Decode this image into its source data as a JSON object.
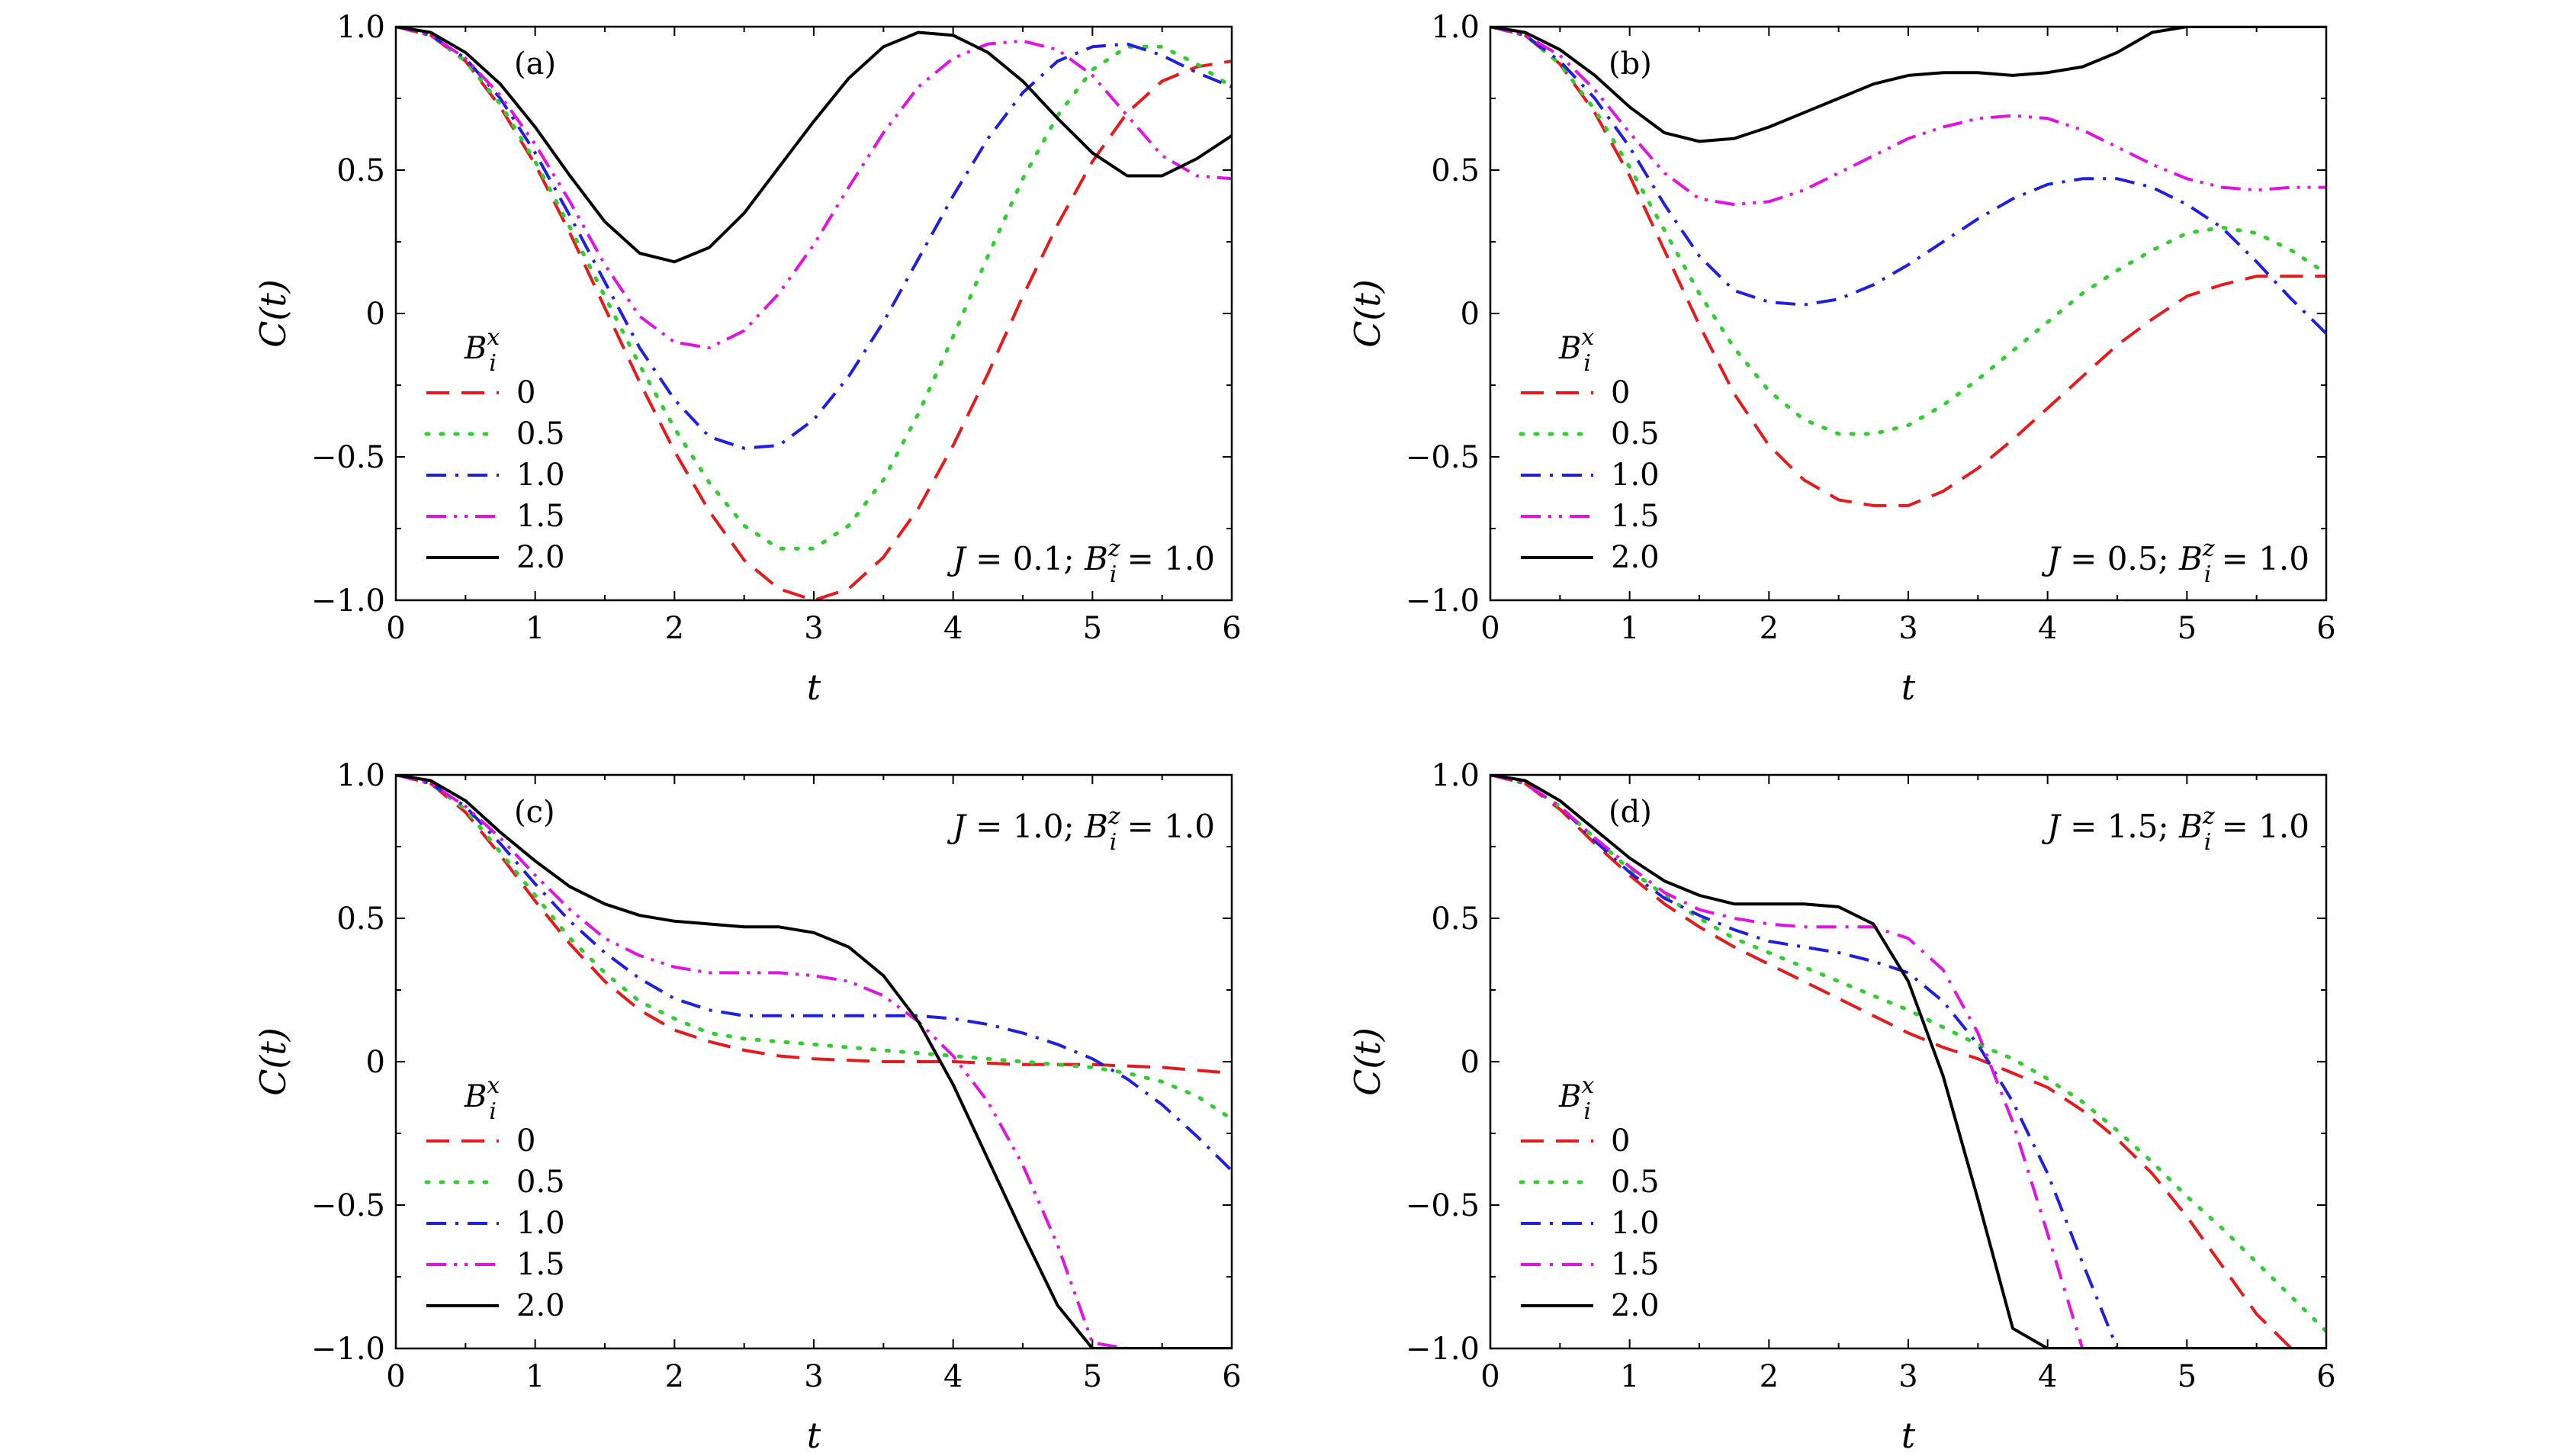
{
  "chart_data": [
    {
      "type": "line",
      "panel": "(a)",
      "annotation": {
        "J": "0.1",
        "Bz": "1.0"
      },
      "xlabel": "t",
      "ylabel": "C(t)",
      "xlim": [
        0,
        6
      ],
      "ylim": [
        -1.0,
        1.0
      ],
      "xticks": [
        "0",
        "1",
        "2",
        "3",
        "4",
        "5",
        "6"
      ],
      "yticks": [
        "−1.0",
        "−0.5",
        "0",
        "0.5",
        "1.0"
      ],
      "legend_title": "B",
      "legend_title_sup": "x",
      "legend_title_sub": "i",
      "legend_placement": "lower-left",
      "x": [
        0,
        0.25,
        0.5,
        0.75,
        1,
        1.25,
        1.5,
        1.75,
        2,
        2.25,
        2.5,
        2.75,
        3,
        3.25,
        3.5,
        3.75,
        4,
        4.25,
        4.5,
        4.75,
        5,
        5.25,
        5.5,
        5.75,
        6
      ],
      "series": [
        {
          "name": "0",
          "color": "#e41a1c",
          "dash": "dash",
          "values": [
            1,
            0.97,
            0.88,
            0.72,
            0.52,
            0.28,
            0.02,
            -0.24,
            -0.48,
            -0.69,
            -0.86,
            -0.96,
            -1.0,
            -0.96,
            -0.85,
            -0.68,
            -0.46,
            -0.21,
            0.06,
            0.31,
            0.53,
            0.7,
            0.81,
            0.86,
            0.88
          ]
        },
        {
          "name": "0.5",
          "color": "#33cc33",
          "dash": "dot",
          "values": [
            1,
            0.97,
            0.88,
            0.73,
            0.53,
            0.3,
            0.06,
            -0.18,
            -0.4,
            -0.59,
            -0.74,
            -0.82,
            -0.82,
            -0.74,
            -0.58,
            -0.35,
            -0.08,
            0.2,
            0.47,
            0.69,
            0.85,
            0.93,
            0.93,
            0.87,
            0.79
          ]
        },
        {
          "name": "1.0",
          "color": "#1f1fdd",
          "dash": "dashdot",
          "values": [
            1,
            0.97,
            0.89,
            0.75,
            0.56,
            0.34,
            0.11,
            -0.12,
            -0.3,
            -0.43,
            -0.47,
            -0.46,
            -0.37,
            -0.22,
            -0.03,
            0.19,
            0.41,
            0.61,
            0.77,
            0.88,
            0.93,
            0.94,
            0.9,
            0.84,
            0.79
          ]
        },
        {
          "name": "1.5",
          "color": "#e014e0",
          "dash": "dashdotdot",
          "values": [
            1,
            0.97,
            0.89,
            0.76,
            0.59,
            0.39,
            0.17,
            -0.01,
            -0.1,
            -0.12,
            -0.06,
            0.07,
            0.24,
            0.44,
            0.63,
            0.79,
            0.89,
            0.94,
            0.95,
            0.92,
            0.83,
            0.69,
            0.55,
            0.48,
            0.47
          ]
        },
        {
          "name": "2.0",
          "color": "#000000",
          "dash": "solid",
          "values": [
            1,
            0.98,
            0.91,
            0.8,
            0.65,
            0.48,
            0.32,
            0.21,
            0.18,
            0.23,
            0.35,
            0.51,
            0.67,
            0.82,
            0.93,
            0.98,
            0.97,
            0.91,
            0.81,
            0.68,
            0.56,
            0.48,
            0.48,
            0.54,
            0.62
          ]
        }
      ]
    },
    {
      "type": "line",
      "panel": "(b)",
      "annotation": {
        "J": "0.5",
        "Bz": "1.0"
      },
      "xlabel": "t",
      "ylabel": "C(t)",
      "xlim": [
        0,
        6
      ],
      "ylim": [
        -1.0,
        1.0
      ],
      "xticks": [
        "0",
        "1",
        "2",
        "3",
        "4",
        "5",
        "6"
      ],
      "yticks": [
        "−1.0",
        "−0.5",
        "0",
        "0.5",
        "1.0"
      ],
      "legend_title": "B",
      "legend_title_sup": "x",
      "legend_title_sub": "i",
      "legend_placement": "lower-left",
      "x": [
        0,
        0.25,
        0.5,
        0.75,
        1,
        1.25,
        1.5,
        1.75,
        2,
        2.25,
        2.5,
        2.75,
        3,
        3.25,
        3.5,
        3.75,
        4,
        4.25,
        4.5,
        4.75,
        5,
        5.25,
        5.5,
        5.75,
        6
      ],
      "series": [
        {
          "name": "0",
          "color": "#e41a1c",
          "dash": "dash",
          "values": [
            1,
            0.97,
            0.87,
            0.7,
            0.48,
            0.22,
            -0.04,
            -0.28,
            -0.46,
            -0.58,
            -0.65,
            -0.67,
            -0.67,
            -0.62,
            -0.54,
            -0.44,
            -0.33,
            -0.22,
            -0.11,
            -0.02,
            0.06,
            0.1,
            0.13,
            0.13,
            0.13
          ]
        },
        {
          "name": "0.5",
          "color": "#33cc33",
          "dash": "dot",
          "values": [
            1,
            0.97,
            0.87,
            0.71,
            0.51,
            0.29,
            0.07,
            -0.12,
            -0.27,
            -0.37,
            -0.42,
            -0.42,
            -0.39,
            -0.32,
            -0.23,
            -0.13,
            -0.03,
            0.07,
            0.15,
            0.22,
            0.28,
            0.3,
            0.28,
            0.22,
            0.14
          ]
        },
        {
          "name": "1.0",
          "color": "#1f1fdd",
          "dash": "dashdot",
          "values": [
            1,
            0.97,
            0.88,
            0.75,
            0.58,
            0.38,
            0.2,
            0.08,
            0.04,
            0.03,
            0.05,
            0.1,
            0.17,
            0.25,
            0.33,
            0.4,
            0.45,
            0.47,
            0.47,
            0.44,
            0.38,
            0.3,
            0.18,
            0.05,
            -0.07
          ]
        },
        {
          "name": "1.5",
          "color": "#e014e0",
          "dash": "dashdotdot",
          "values": [
            1,
            0.97,
            0.9,
            0.78,
            0.63,
            0.49,
            0.4,
            0.38,
            0.39,
            0.43,
            0.49,
            0.55,
            0.61,
            0.65,
            0.68,
            0.69,
            0.68,
            0.64,
            0.58,
            0.52,
            0.47,
            0.44,
            0.43,
            0.44,
            0.44
          ]
        },
        {
          "name": "2.0",
          "color": "#000000",
          "dash": "solid",
          "values": [
            1,
            0.98,
            0.92,
            0.83,
            0.72,
            0.63,
            0.6,
            0.61,
            0.65,
            0.7,
            0.75,
            0.8,
            0.83,
            0.84,
            0.84,
            0.83,
            0.84,
            0.86,
            0.91,
            0.98,
            1.0,
            1.0,
            1.0,
            1.0,
            1.0
          ]
        }
      ]
    },
    {
      "type": "line",
      "panel": "(c)",
      "annotation": {
        "J": "1.0",
        "Bz": "1.0"
      },
      "xlabel": "t",
      "ylabel": "C(t)",
      "xlim": [
        0,
        6
      ],
      "ylim": [
        -1.0,
        1.0
      ],
      "xticks": [
        "0",
        "1",
        "2",
        "3",
        "4",
        "5",
        "6"
      ],
      "yticks": [
        "−1.0",
        "−0.5",
        "0",
        "0.5",
        "1.0"
      ],
      "legend_title": "B",
      "legend_title_sup": "x",
      "legend_title_sub": "i",
      "legend_placement": "lower-left",
      "x": [
        0,
        0.25,
        0.5,
        0.75,
        1,
        1.25,
        1.5,
        1.75,
        2,
        2.25,
        2.5,
        2.75,
        3,
        3.25,
        3.5,
        3.75,
        4,
        4.25,
        4.5,
        4.75,
        5,
        5.25,
        5.5,
        5.75,
        6
      ],
      "series": [
        {
          "name": "0",
          "color": "#e41a1c",
          "dash": "dash",
          "values": [
            1,
            0.97,
            0.87,
            0.72,
            0.56,
            0.41,
            0.28,
            0.18,
            0.11,
            0.07,
            0.04,
            0.02,
            0.01,
            0.005,
            0.0,
            0.0,
            0.0,
            -0.005,
            -0.01,
            -0.01,
            -0.01,
            -0.015,
            -0.02,
            -0.03,
            -0.04
          ]
        },
        {
          "name": "0.5",
          "color": "#33cc33",
          "dash": "dot",
          "values": [
            1,
            0.97,
            0.88,
            0.73,
            0.58,
            0.43,
            0.31,
            0.21,
            0.15,
            0.1,
            0.08,
            0.07,
            0.06,
            0.05,
            0.04,
            0.03,
            0.02,
            0.01,
            0.0,
            -0.01,
            -0.02,
            -0.04,
            -0.07,
            -0.12,
            -0.2
          ]
        },
        {
          "name": "1.0",
          "color": "#1f1fdd",
          "dash": "dashdot",
          "values": [
            1,
            0.97,
            0.89,
            0.76,
            0.62,
            0.49,
            0.38,
            0.29,
            0.22,
            0.18,
            0.16,
            0.16,
            0.16,
            0.16,
            0.16,
            0.16,
            0.15,
            0.13,
            0.1,
            0.06,
            0.01,
            -0.06,
            -0.15,
            -0.26,
            -0.38
          ]
        },
        {
          "name": "1.5",
          "color": "#e014e0",
          "dash": "dashdotdot",
          "values": [
            1,
            0.97,
            0.89,
            0.78,
            0.65,
            0.53,
            0.43,
            0.37,
            0.33,
            0.31,
            0.31,
            0.31,
            0.3,
            0.28,
            0.23,
            0.14,
            0.02,
            -0.14,
            -0.36,
            -0.64,
            -0.98,
            -1.0,
            -1.0,
            -1.0,
            -1.0
          ]
        },
        {
          "name": "2.0",
          "color": "#000000",
          "dash": "solid",
          "values": [
            1,
            0.98,
            0.91,
            0.8,
            0.7,
            0.61,
            0.55,
            0.51,
            0.49,
            0.48,
            0.47,
            0.47,
            0.45,
            0.4,
            0.3,
            0.14,
            -0.08,
            -0.34,
            -0.6,
            -0.85,
            -1.0,
            -1.0,
            -1.0,
            -1.0,
            -1.0
          ]
        }
      ]
    },
    {
      "type": "line",
      "panel": "(d)",
      "annotation": {
        "J": "1.5",
        "Bz": "1.0"
      },
      "xlabel": "t",
      "ylabel": "C(t)",
      "xlim": [
        0,
        6
      ],
      "ylim": [
        -1.0,
        1.0
      ],
      "xticks": [
        "0",
        "1",
        "2",
        "3",
        "4",
        "5",
        "6"
      ],
      "yticks": [
        "−1.0",
        "−0.5",
        "0",
        "0.5",
        "1.0"
      ],
      "legend_title": "B",
      "legend_title_sup": "x",
      "legend_title_sub": "i",
      "legend_placement": "lower-left",
      "x": [
        0,
        0.25,
        0.5,
        0.75,
        1,
        1.25,
        1.5,
        1.75,
        2,
        2.25,
        2.5,
        2.75,
        3,
        3.25,
        3.5,
        3.75,
        4,
        4.25,
        4.5,
        4.75,
        5,
        5.25,
        5.5,
        5.75,
        6
      ],
      "series": [
        {
          "name": "0",
          "color": "#e41a1c",
          "dash": "dash",
          "values": [
            1,
            0.97,
            0.88,
            0.76,
            0.65,
            0.55,
            0.47,
            0.4,
            0.34,
            0.28,
            0.22,
            0.16,
            0.1,
            0.05,
            0.01,
            -0.04,
            -0.09,
            -0.17,
            -0.27,
            -0.39,
            -0.54,
            -0.71,
            -0.88,
            -1.0,
            -1.0
          ]
        },
        {
          "name": "0.5",
          "color": "#33cc33",
          "dash": "dot",
          "values": [
            1,
            0.97,
            0.89,
            0.78,
            0.67,
            0.58,
            0.5,
            0.43,
            0.38,
            0.33,
            0.28,
            0.23,
            0.18,
            0.12,
            0.06,
            0.01,
            -0.06,
            -0.14,
            -0.24,
            -0.35,
            -0.47,
            -0.58,
            -0.7,
            -0.82,
            -0.94
          ]
        },
        {
          "name": "1.0",
          "color": "#1f1fdd",
          "dash": "dashdot",
          "values": [
            1,
            0.97,
            0.89,
            0.77,
            0.66,
            0.57,
            0.51,
            0.46,
            0.42,
            0.4,
            0.38,
            0.35,
            0.31,
            0.21,
            0.06,
            -0.14,
            -0.39,
            -0.7,
            -1.0,
            -1.0,
            -1.0,
            -1.0,
            -1.0,
            -1.0,
            -1.0
          ]
        },
        {
          "name": "1.5",
          "color": "#e014e0",
          "dash": "dashdot",
          "values": [
            1,
            0.97,
            0.89,
            0.78,
            0.68,
            0.59,
            0.53,
            0.5,
            0.48,
            0.47,
            0.47,
            0.47,
            0.43,
            0.32,
            0.1,
            -0.21,
            -0.6,
            -1.0,
            -1.0,
            -1.0,
            -1.0,
            -1.0,
            -1.0,
            -1.0,
            -1.0
          ]
        },
        {
          "name": "2.0",
          "color": "#000000",
          "dash": "solid",
          "values": [
            1,
            0.98,
            0.91,
            0.81,
            0.71,
            0.63,
            0.58,
            0.55,
            0.55,
            0.55,
            0.54,
            0.48,
            0.28,
            -0.05,
            -0.48,
            -0.93,
            -1.0,
            -1.0,
            -1.0,
            -1.0,
            -1.0,
            -1.0,
            -1.0,
            -1.0,
            -1.0
          ]
        }
      ]
    }
  ]
}
